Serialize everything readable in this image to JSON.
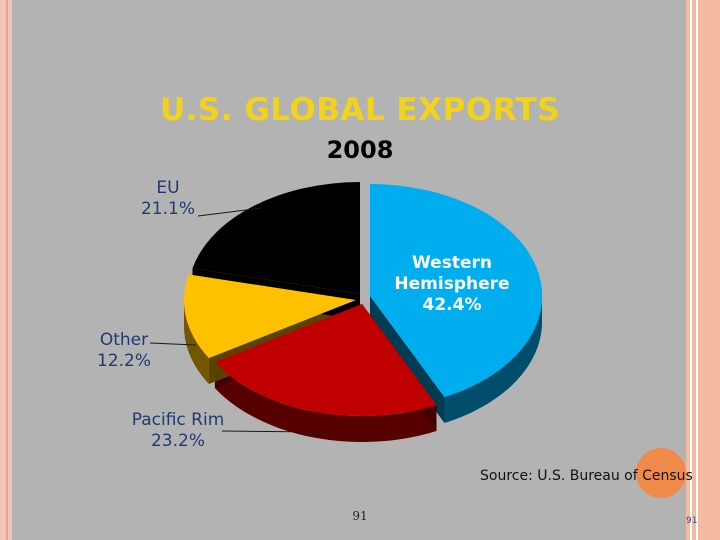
{
  "slide": {
    "title": "U.S. GLOBAL EXPORTS",
    "subtitle": "2008",
    "source": "Source: U.S. Bureau of Census",
    "page_number": "91",
    "page_number_corner": "91"
  },
  "colors": {
    "western": "#00aeef",
    "pacific": "#c00000",
    "other": "#ffc000",
    "eu": "#000000",
    "title": "#f2d21a"
  },
  "chart_data": {
    "type": "pie",
    "title": "U.S. GLOBAL EXPORTS",
    "subtitle": "2008",
    "style": "3d-exploded",
    "slices": [
      {
        "label_lines": [
          "Western",
          "Hemisphere"
        ],
        "percent_label": "42.4%",
        "value": 42.4,
        "color": "#00aeef",
        "side": "shade-dark",
        "label_inside": true
      },
      {
        "label_lines": [
          "Pacific Rim"
        ],
        "percent_label": "23.2%",
        "value": 23.2,
        "color": "#c00000",
        "label_inside": false
      },
      {
        "label_lines": [
          "Other"
        ],
        "percent_label": "12.2%",
        "value": 12.2,
        "color": "#ffc000",
        "label_inside": false
      },
      {
        "label_lines": [
          "EU"
        ],
        "percent_label": "21.1%",
        "value": 21.1,
        "color": "#000000",
        "label_inside": false
      }
    ]
  }
}
